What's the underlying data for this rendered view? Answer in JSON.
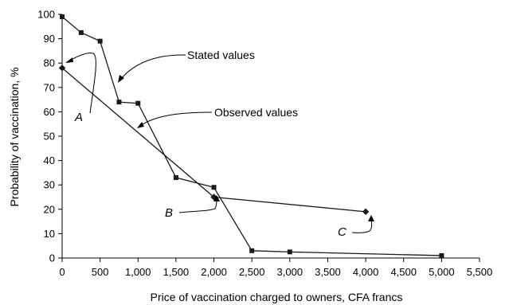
{
  "chart_data": {
    "type": "line",
    "xlabel": "Price of vaccination charged to owners, CFA francs",
    "ylabel": "Probability of vaccination, %",
    "xlim": [
      0,
      5500
    ],
    "ylim": [
      0,
      100
    ],
    "x_ticks": [
      0,
      500,
      1000,
      1500,
      2000,
      2500,
      3000,
      3500,
      4000,
      4500,
      5000,
      5500
    ],
    "x_tick_labels": [
      "0",
      "500",
      "1,000",
      "1,500",
      "2,000",
      "2,500",
      "3,000",
      "3,500",
      "4,000",
      "4,500",
      "5,000",
      "5,500"
    ],
    "y_ticks": [
      0,
      10,
      20,
      30,
      40,
      50,
      60,
      70,
      80,
      90,
      100
    ],
    "y_tick_labels": [
      "0",
      "10",
      "20",
      "30",
      "40",
      "50",
      "60",
      "70",
      "80",
      "90",
      "100"
    ],
    "grid": false,
    "legend": "none",
    "series": [
      {
        "name": "Stated values",
        "marker": "square",
        "color": "#1a1a1a",
        "points": [
          [
            0,
            99
          ],
          [
            250,
            92.5
          ],
          [
            500,
            89
          ],
          [
            750,
            64
          ],
          [
            1000,
            63.5
          ],
          [
            1500,
            33
          ],
          [
            2000,
            29
          ],
          [
            2500,
            3
          ],
          [
            3000,
            2.5
          ],
          [
            5000,
            1
          ]
        ]
      },
      {
        "name": "Observed values",
        "marker": "diamond",
        "color": "#1a1a1a",
        "points": [
          [
            0,
            78
          ],
          [
            2000,
            25
          ],
          [
            4000,
            19
          ]
        ]
      }
    ],
    "annotations": [
      {
        "label": "A"
      },
      {
        "label": "B"
      },
      {
        "label": "C"
      }
    ]
  }
}
